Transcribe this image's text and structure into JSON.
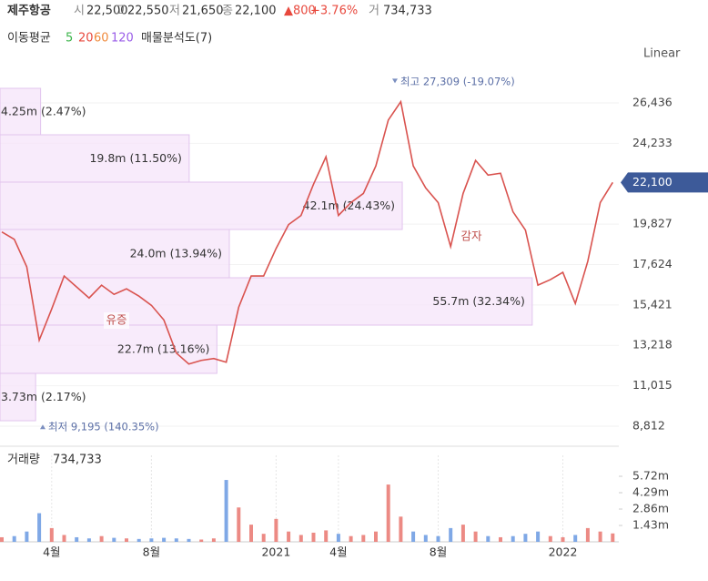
{
  "header": {
    "name": "제주항공",
    "quotes": [
      {
        "label": "시",
        "value": "22,500"
      },
      {
        "label": "고",
        "value": "22,550"
      },
      {
        "label": "저",
        "value": "21,650"
      },
      {
        "label": "종",
        "value": "22,100"
      }
    ],
    "change": "▲800",
    "change_pct": "+3.76%",
    "volume_label": "거",
    "volume": "734,733"
  },
  "legend": {
    "title": "이동평균",
    "periods": [
      {
        "label": "5",
        "color": "#3bb44a"
      },
      {
        "label": "20",
        "color": "#e8483d"
      },
      {
        "label": "60",
        "color": "#f08a3c"
      },
      {
        "label": "120",
        "color": "#9a5de8"
      }
    ],
    "profile": "매물분석도(7)"
  },
  "scale_mode": "Linear",
  "chart_data": [
    {
      "type": "line",
      "categories": [
        null,
        null,
        null,
        null,
        "4월",
        null,
        null,
        null,
        null,
        null,
        null,
        null,
        "8월",
        null,
        null,
        null,
        null,
        null,
        null,
        null,
        null,
        null,
        "2021",
        null,
        null,
        null,
        null,
        "4월",
        null,
        null,
        null,
        null,
        null,
        null,
        null,
        "8월",
        null,
        null,
        null,
        null,
        null,
        null,
        null,
        null,
        null,
        "2022",
        null,
        null,
        null,
        null
      ],
      "values": [
        19400,
        19000,
        17500,
        13500,
        15200,
        17000,
        16400,
        15800,
        16500,
        16000,
        16300,
        15900,
        15400,
        14600,
        12800,
        12200,
        12400,
        12500,
        12300,
        15300,
        17000,
        17000,
        18500,
        19800,
        20300,
        22000,
        23500,
        20300,
        21000,
        21500,
        23000,
        25500,
        26500,
        23000,
        21800,
        21000,
        18600,
        21500,
        23300,
        22500,
        22600,
        20500,
        19500,
        16500,
        16800,
        17200,
        15500,
        17800,
        21000,
        22100
      ],
      "color": "#d9534f",
      "ylim": [
        7968,
        28173
      ],
      "yticks": [
        {
          "value": 26436,
          "label": "26,436"
        },
        {
          "value": 24233,
          "label": "24,233"
        },
        {
          "value": 19827,
          "label": "19,827"
        },
        {
          "value": 17624,
          "label": "17,624"
        },
        {
          "value": 15421,
          "label": "15,421"
        },
        {
          "value": 13218,
          "label": "13,218"
        },
        {
          "value": 11015,
          "label": "11,015"
        },
        {
          "value": 8812,
          "label": "8,812"
        }
      ],
      "current": {
        "value": 22100,
        "label": "22,100",
        "color": "#3d5a99"
      },
      "volume_profile": {
        "bins": [
          27230,
          24698,
          22117,
          19535,
          16904,
          14323,
          11692,
          9110
        ],
        "values": [
          4.25,
          19.8,
          42.1,
          24.0,
          55.7,
          22.7,
          3.73
        ],
        "value_labels": [
          "4.25m",
          "19.8m",
          "42.1m",
          "24.0m",
          "55.7m",
          "22.7m",
          "3.73m"
        ],
        "percent_labels": [
          "(2.47%)",
          "(11.50%)",
          "(24.43%)",
          "(13.94%)",
          "(32.34%)",
          "(13.16%)",
          "(2.17%)"
        ],
        "color": "#f5e4fa",
        "border": "#e2c4ee"
      },
      "annotations": [
        {
          "text": "최고",
          "value": 27309,
          "value_label": "27,309",
          "change": "(-19.07%)"
        },
        {
          "text": "최저",
          "value": 9195,
          "value_label": "9,195",
          "change": "(140.35%)"
        }
      ],
      "events": [
        "유증",
        "감자"
      ]
    },
    {
      "type": "bar",
      "title": "거래량",
      "values": [
        400000,
        500000,
        900000,
        2500000,
        1200000,
        600000,
        400000,
        300000,
        500000,
        350000,
        300000,
        250000,
        300000,
        350000,
        300000,
        250000,
        200000,
        300000,
        5400000,
        3000000,
        1500000,
        700000,
        2000000,
        900000,
        600000,
        800000,
        1000000,
        700000,
        500000,
        600000,
        900000,
        5000000,
        2200000,
        900000,
        600000,
        500000,
        1200000,
        1500000,
        900000,
        500000,
        400000,
        500000,
        700000,
        900000,
        500000,
        400000,
        600000,
        1200000,
        900000,
        734733
      ],
      "ylim": [
        0,
        7550000
      ],
      "yticks": [
        {
          "value": 5720000,
          "label": "5.72m"
        },
        {
          "value": 4290000,
          "label": "4.29m"
        },
        {
          "value": 2860000,
          "label": "2.86m"
        },
        {
          "value": 1430000,
          "label": "1.43m"
        }
      ],
      "up_color": "#ec8a84",
      "down_color": "#7fa8e6"
    }
  ]
}
